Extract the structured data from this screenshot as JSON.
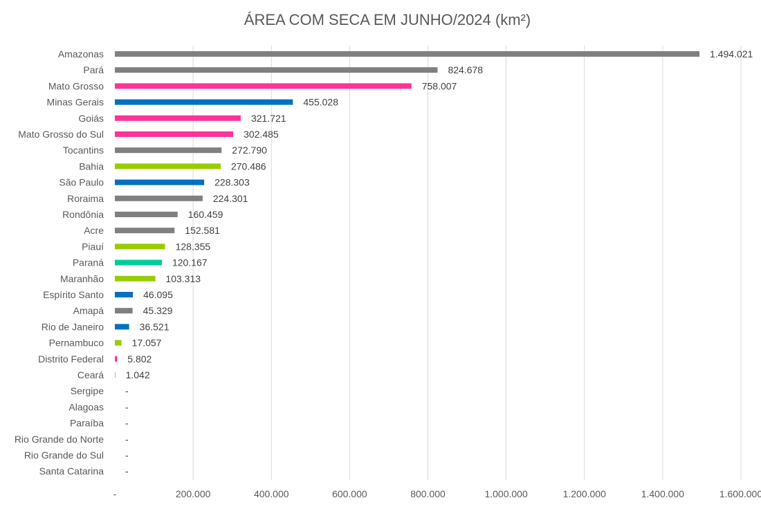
{
  "chart_data": {
    "type": "bar",
    "orientation": "horizontal",
    "title": "ÁREA COM SECA EM JUNHO/2024 (km²)",
    "xlim": [
      0,
      1600000
    ],
    "grid": true,
    "x_ticks": [
      {
        "value": 0,
        "label": "-"
      },
      {
        "value": 200000,
        "label": "200.000"
      },
      {
        "value": 400000,
        "label": "400.000"
      },
      {
        "value": 600000,
        "label": "600.000"
      },
      {
        "value": 800000,
        "label": "800.000"
      },
      {
        "value": 1000000,
        "label": "1.000.000"
      },
      {
        "value": 1200000,
        "label": "1.200.000"
      },
      {
        "value": 1400000,
        "label": "1.400.000"
      },
      {
        "value": 1600000,
        "label": "1.600.000"
      }
    ],
    "categories": [
      "Amazonas",
      "Pará",
      "Mato Grosso",
      "Minas Gerais",
      "Goiás",
      "Mato Grosso do Sul",
      "Tocantins",
      "Bahia",
      "São Paulo",
      "Roraima",
      "Rondônia",
      "Acre",
      "Piauí",
      "Paraná",
      "Maranhão",
      "Espírito Santo",
      "Amapá",
      "Rio de Janeiro",
      "Pernambuco",
      "Distrito Federal",
      "Ceará",
      "Sergipe",
      "Alagoas",
      "Paraíba",
      "Rio Grande do Norte",
      "Rio Grande do Sul",
      "Santa Catarina"
    ],
    "values": [
      1494021,
      824678,
      758007,
      455028,
      321721,
      302485,
      272790,
      270486,
      228303,
      224301,
      160459,
      152581,
      128355,
      120167,
      103313,
      46095,
      45329,
      36521,
      17057,
      5802,
      1042,
      0,
      0,
      0,
      0,
      0,
      0
    ],
    "value_labels": [
      "1.494.021",
      "824.678",
      "758.007",
      "455.028",
      "321.721",
      "302.485",
      "272.790",
      "270.486",
      "228.303",
      "224.301",
      "160.459",
      "152.581",
      "128.355",
      "120.167",
      "103.313",
      "46.095",
      "45.329",
      "36.521",
      "17.057",
      "5.802",
      "1.042",
      "-",
      "-",
      "-",
      "-",
      "-",
      "-"
    ],
    "bar_colors": [
      "#808080",
      "#808080",
      "#ff3399",
      "#0070c0",
      "#ff3399",
      "#ff3399",
      "#808080",
      "#99cc00",
      "#0070c0",
      "#808080",
      "#808080",
      "#808080",
      "#99cc00",
      "#00cc99",
      "#99cc00",
      "#0070c0",
      "#808080",
      "#0070c0",
      "#99cc00",
      "#ff3399",
      "#808080",
      "#808080",
      "#808080",
      "#808080",
      "#808080",
      "#808080",
      "#808080"
    ]
  }
}
